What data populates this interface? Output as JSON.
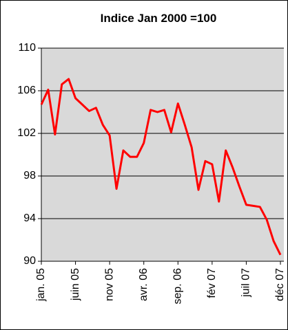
{
  "chart_data": {
    "type": "line",
    "title": "Indice Jan 2000 =100",
    "categories": [
      "jan. 05",
      null,
      null,
      null,
      null,
      "juin 05",
      null,
      null,
      null,
      null,
      "nov 05",
      null,
      null,
      null,
      null,
      "avr. 06",
      null,
      null,
      null,
      null,
      "sep. 06",
      null,
      null,
      null,
      null,
      "fév 07",
      null,
      null,
      null,
      null,
      "juil 07",
      null,
      null,
      null,
      null,
      "déc 07"
    ],
    "series": [
      {
        "color": "#ff0000",
        "values": [
          104.7,
          106.1,
          101.9,
          106.6,
          107.1,
          105.3,
          104.7,
          104.1,
          104.4,
          102.8,
          101.8,
          96.8,
          100.4,
          99.8,
          99.8,
          101.1,
          104.2,
          104.0,
          104.2,
          102.1,
          104.8,
          102.8,
          100.7,
          96.7,
          99.4,
          99.1,
          95.6,
          100.4,
          98.8,
          97.0,
          95.3,
          95.2,
          95.1,
          93.9,
          91.9,
          90.6
        ]
      }
    ],
    "ylim": [
      90,
      110
    ],
    "yticks": [
      90,
      94,
      98,
      102,
      106,
      110
    ],
    "grid": true
  }
}
